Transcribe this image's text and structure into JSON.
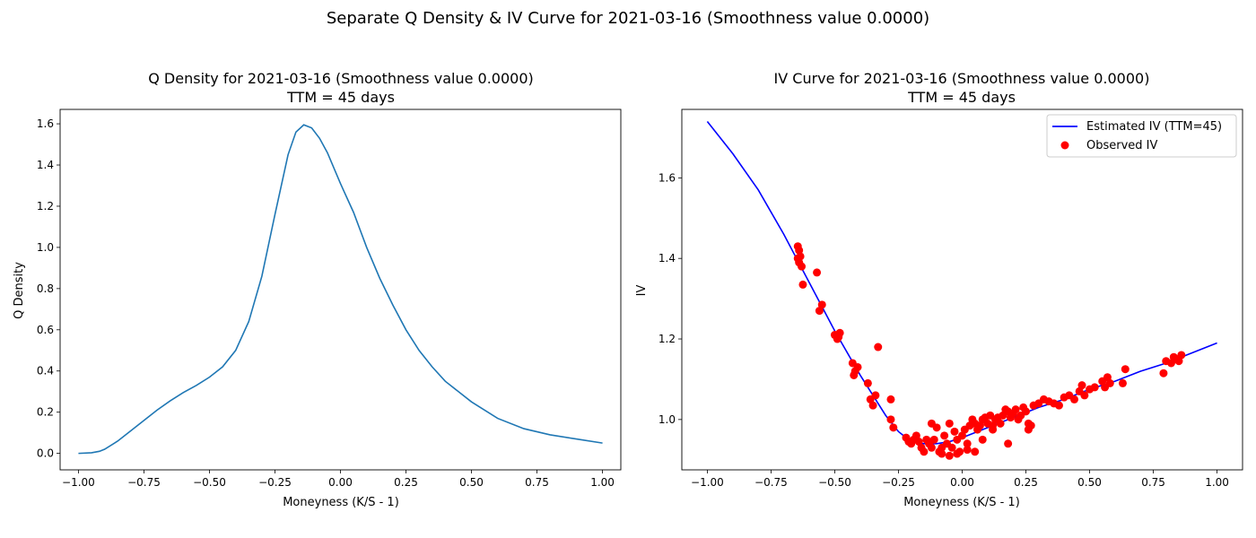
{
  "suptitle": "Separate Q Density & IV Curve for 2021-03-16 (Smoothness value 0.0000)",
  "chart_data": [
    {
      "type": "line",
      "title": "Q Density for 2021-03-16 (Smoothness value 0.0000)",
      "subtitle": "TTM = 45 days",
      "xlabel": "Moneyness (K/S - 1)",
      "ylabel": "Q Density",
      "xlim": [
        -1.07,
        1.07
      ],
      "ylim": [
        -0.08,
        1.67
      ],
      "xticks": [
        -1.0,
        -0.75,
        -0.5,
        -0.25,
        0.0,
        0.25,
        0.5,
        0.75,
        1.0
      ],
      "xtick_labels": [
        "−1.00",
        "−0.75",
        "−0.50",
        "−0.25",
        "0.00",
        "0.25",
        "0.50",
        "0.75",
        "1.00"
      ],
      "yticks": [
        0.0,
        0.2,
        0.4,
        0.6,
        0.8,
        1.0,
        1.2,
        1.4,
        1.6
      ],
      "ytick_labels": [
        "0.0",
        "0.2",
        "0.4",
        "0.6",
        "0.8",
        "1.0",
        "1.2",
        "1.4",
        "1.6"
      ],
      "grid": false,
      "color": "#1f77b4",
      "series": [
        {
          "x": [
            -1.0,
            -0.95,
            -0.92,
            -0.9,
            -0.85,
            -0.8,
            -0.75,
            -0.7,
            -0.65,
            -0.6,
            -0.55,
            -0.5,
            -0.45,
            -0.4,
            -0.35,
            -0.3,
            -0.25,
            -0.2,
            -0.17,
            -0.14,
            -0.11,
            -0.08,
            -0.05,
            0.0,
            0.05,
            0.1,
            0.15,
            0.2,
            0.25,
            0.3,
            0.35,
            0.4,
            0.5,
            0.6,
            0.7,
            0.8,
            0.9,
            1.0
          ],
          "y": [
            0.0,
            0.003,
            0.01,
            0.02,
            0.06,
            0.11,
            0.16,
            0.21,
            0.255,
            0.295,
            0.33,
            0.37,
            0.42,
            0.5,
            0.64,
            0.86,
            1.16,
            1.45,
            1.56,
            1.595,
            1.58,
            1.53,
            1.46,
            1.31,
            1.17,
            1.0,
            0.85,
            0.72,
            0.6,
            0.5,
            0.42,
            0.35,
            0.25,
            0.17,
            0.12,
            0.09,
            0.07,
            0.05
          ]
        }
      ]
    },
    {
      "type": "scatter",
      "title": "IV Curve for 2021-03-16 (Smoothness value 0.0000)",
      "subtitle": "TTM = 45 days",
      "xlabel": "Moneyness (K/S - 1)",
      "ylabel": "IV",
      "xlim": [
        -1.1,
        1.1
      ],
      "ylim": [
        0.875,
        1.77
      ],
      "xticks": [
        -1.0,
        -0.75,
        -0.5,
        -0.25,
        0.0,
        0.25,
        0.5,
        0.75,
        1.0
      ],
      "xtick_labels": [
        "−1.00",
        "−0.75",
        "−0.50",
        "−0.25",
        "0.00",
        "0.25",
        "0.50",
        "0.75",
        "1.00"
      ],
      "yticks": [
        1.0,
        1.2,
        1.4,
        1.6
      ],
      "ytick_labels": [
        "1.0",
        "1.2",
        "1.4",
        "1.6"
      ],
      "grid": false,
      "legend_position": "top-right",
      "series": [
        {
          "name": "Estimated IV (TTM=45)",
          "kind": "line",
          "color": "#0000ff",
          "x": [
            -1.0,
            -0.9,
            -0.8,
            -0.7,
            -0.6,
            -0.5,
            -0.4,
            -0.35,
            -0.3,
            -0.25,
            -0.2,
            -0.15,
            -0.1,
            -0.05,
            0.0,
            0.1,
            0.2,
            0.3,
            0.4,
            0.5,
            0.6,
            0.7,
            0.8,
            0.9,
            1.0
          ],
          "y": [
            1.74,
            1.66,
            1.57,
            1.46,
            1.34,
            1.22,
            1.11,
            1.06,
            1.01,
            0.97,
            0.945,
            0.94,
            0.94,
            0.945,
            0.955,
            0.98,
            1.005,
            1.03,
            1.05,
            1.075,
            1.095,
            1.12,
            1.14,
            1.165,
            1.19
          ]
        },
        {
          "name": "Observed IV",
          "kind": "scatter",
          "color": "#ff0000",
          "x": [
            -0.645,
            -0.64,
            -0.635,
            -0.64,
            -0.63,
            -0.645,
            -0.625,
            -0.57,
            -0.56,
            -0.55,
            -0.5,
            -0.49,
            -0.48,
            -0.485,
            -0.43,
            -0.42,
            -0.425,
            -0.41,
            -0.37,
            -0.36,
            -0.35,
            -0.33,
            -0.34,
            -0.28,
            -0.28,
            -0.27,
            -0.22,
            -0.21,
            -0.2,
            -0.19,
            -0.18,
            -0.17,
            -0.16,
            -0.15,
            -0.14,
            -0.13,
            -0.12,
            -0.11,
            -0.1,
            -0.09,
            -0.08,
            -0.07,
            -0.06,
            -0.05,
            -0.04,
            -0.03,
            -0.02,
            -0.01,
            0.0,
            0.01,
            0.02,
            0.03,
            0.04,
            0.05,
            0.06,
            0.07,
            0.08,
            0.09,
            0.1,
            0.11,
            0.12,
            0.13,
            0.14,
            0.15,
            0.16,
            0.17,
            0.18,
            0.19,
            0.2,
            0.21,
            0.22,
            0.23,
            0.24,
            0.25,
            0.26,
            0.27,
            0.28,
            0.3,
            0.32,
            0.34,
            0.36,
            0.38,
            0.4,
            0.42,
            0.44,
            0.46,
            0.47,
            0.48,
            0.5,
            0.52,
            0.55,
            0.56,
            0.57,
            0.58,
            0.64,
            0.63,
            0.79,
            0.8,
            0.82,
            0.83,
            0.84,
            0.85,
            0.86,
            -0.12,
            -0.08,
            -0.05,
            -0.02,
            0.02,
            0.05,
            0.08,
            0.12,
            0.18,
            0.26
          ],
          "y": [
            1.43,
            1.42,
            1.405,
            1.39,
            1.38,
            1.4,
            1.335,
            1.365,
            1.27,
            1.285,
            1.21,
            1.2,
            1.215,
            1.205,
            1.14,
            1.12,
            1.11,
            1.13,
            1.09,
            1.05,
            1.035,
            1.18,
            1.06,
            1.05,
            1.0,
            0.98,
            0.955,
            0.945,
            0.94,
            0.95,
            0.96,
            0.945,
            0.93,
            0.92,
            0.95,
            0.94,
            0.93,
            0.95,
            0.98,
            0.92,
            0.93,
            0.96,
            0.94,
            0.91,
            0.93,
            0.97,
            0.95,
            0.92,
            0.96,
            0.975,
            0.94,
            0.985,
            1.0,
            0.99,
            0.975,
            0.985,
            1.0,
            1.005,
            0.99,
            1.01,
            0.985,
            1.0,
            1.005,
            0.99,
            1.01,
            1.025,
            1.02,
            1.005,
            1.015,
            1.025,
            1.0,
            1.01,
            1.03,
            1.02,
            0.975,
            0.985,
            1.035,
            1.04,
            1.05,
            1.045,
            1.04,
            1.035,
            1.055,
            1.06,
            1.05,
            1.07,
            1.085,
            1.06,
            1.075,
            1.08,
            1.095,
            1.08,
            1.105,
            1.09,
            1.125,
            1.09,
            1.115,
            1.145,
            1.14,
            1.155,
            1.15,
            1.145,
            1.16,
            0.99,
            0.915,
            0.99,
            0.915,
            0.925,
            0.92,
            0.95,
            0.975,
            0.94,
            0.99
          ]
        }
      ]
    }
  ]
}
